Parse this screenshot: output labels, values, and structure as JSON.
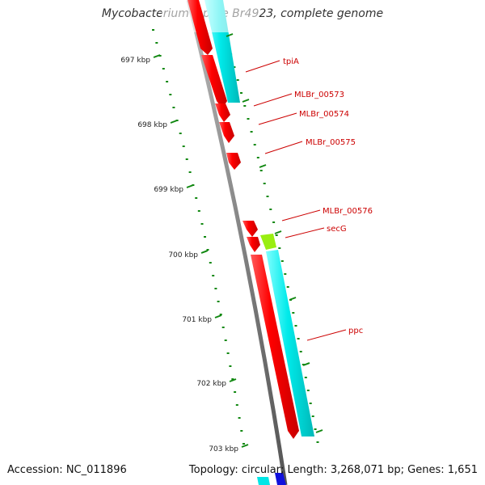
{
  "title": "Mycobacterium leprae Br4923, complete genome",
  "footer": {
    "accession": "Accession: NC_011896",
    "summary": "Topology: circular; Length: 3,268,071 bp; Genes: 1,651"
  },
  "map": {
    "kbp_labels": [
      "697 kbp",
      "698 kbp",
      "699 kbp",
      "700 kbp",
      "701 kbp",
      "702 kbp",
      "703 kbp"
    ],
    "gene_labels": [
      "tpiA",
      "MLBr_00573",
      "MLBr_00574",
      "MLBr_00575",
      "MLBr_00576",
      "secG",
      "ppc"
    ]
  },
  "colors": {
    "cds": "#ff0000",
    "cds_highlight": "#ff8080",
    "rna_feature": "#00e6e6",
    "secG_feature": "#99ee11",
    "backbone": "#8c8c8c",
    "ticks": "#118811",
    "label_text": "#cc0000"
  }
}
